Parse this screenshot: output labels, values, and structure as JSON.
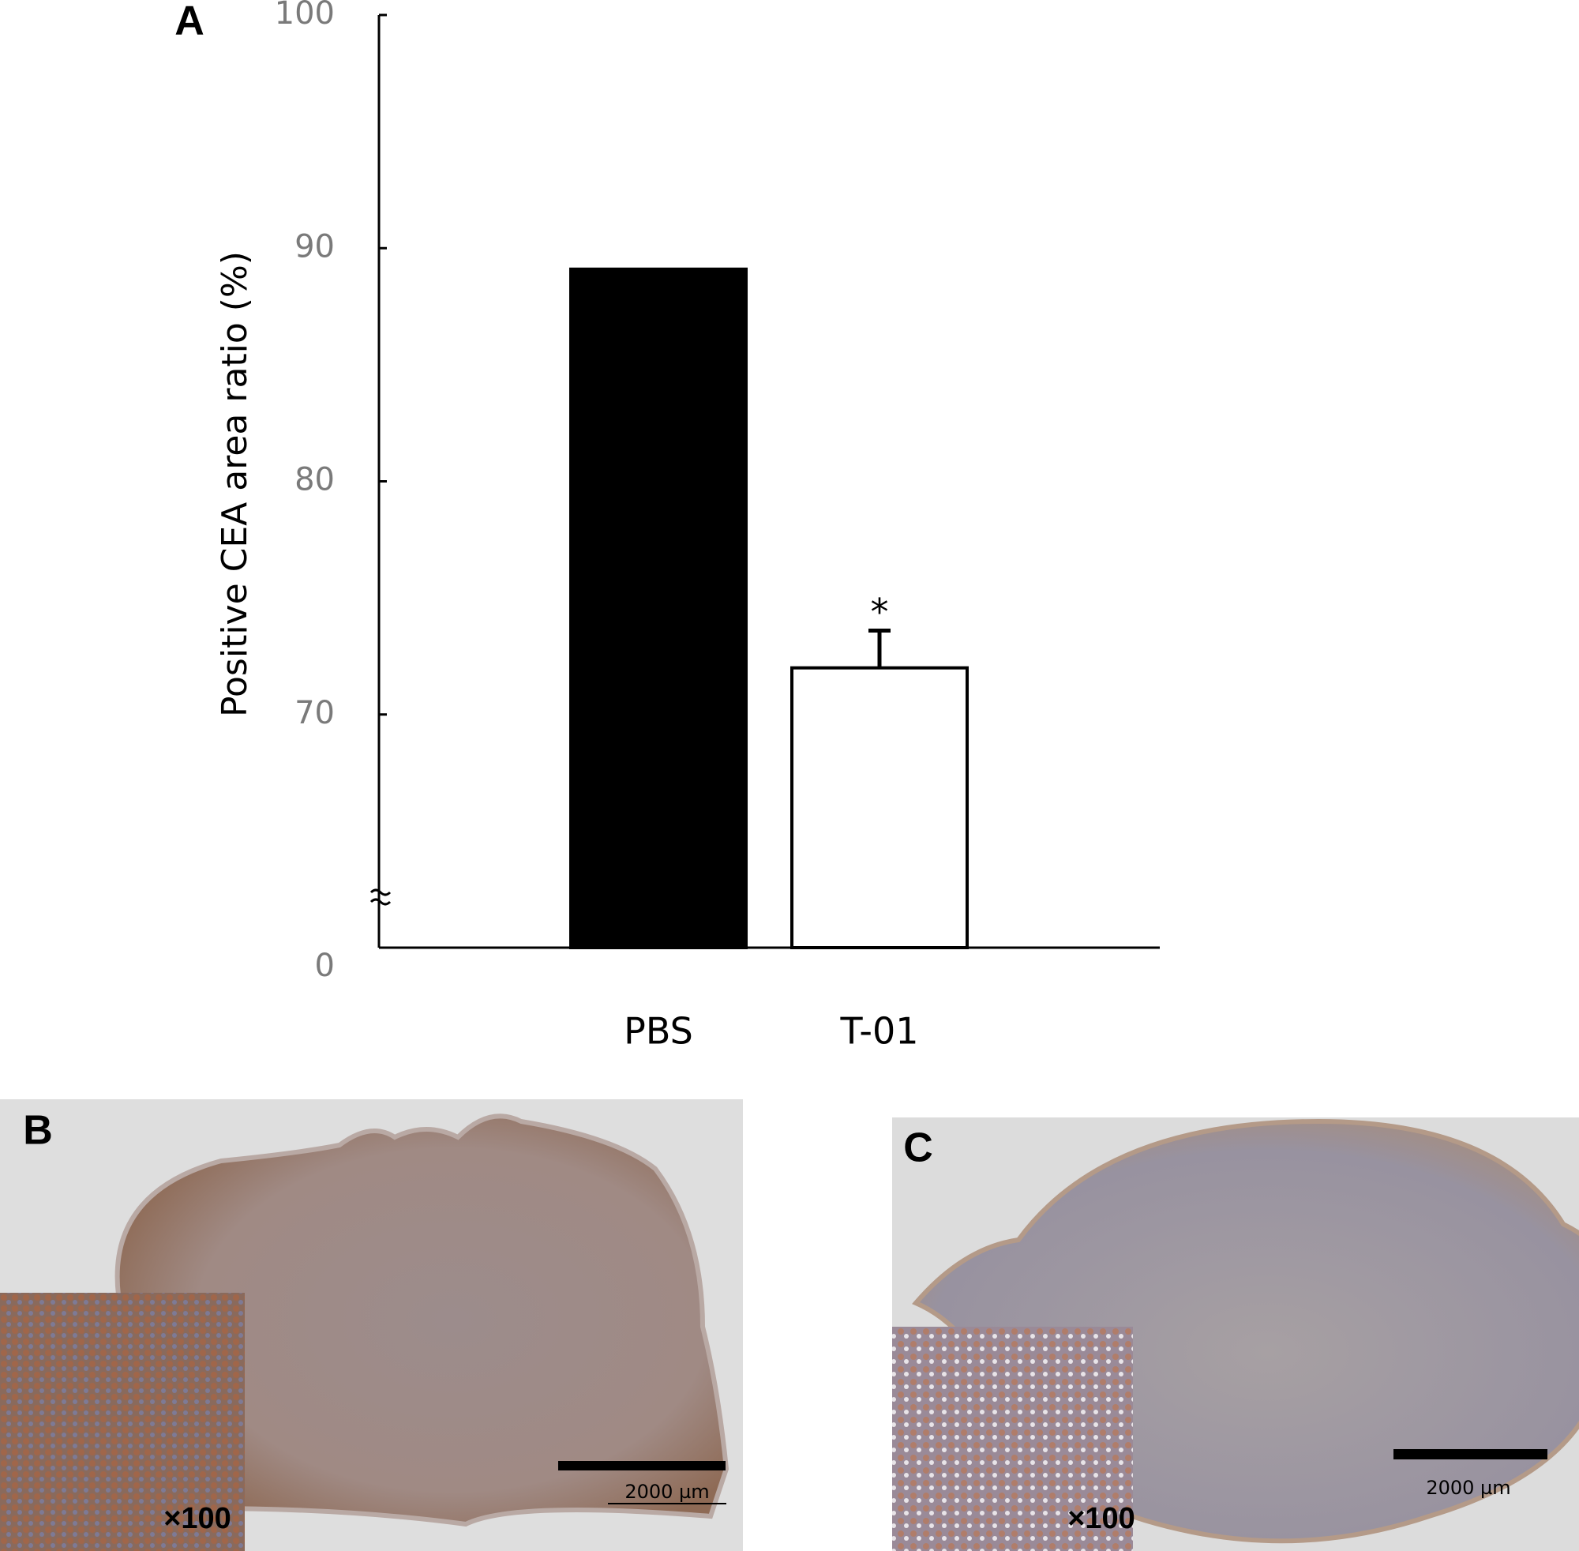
{
  "chart_data": {
    "type": "bar",
    "panel_label": "A",
    "ylabel": "Positive CEA area ratio (%)",
    "categories": [
      "PBS",
      "T-01"
    ],
    "values": [
      89.1,
      72.0
    ],
    "errors": [
      null,
      1.6
    ],
    "colors": [
      "#000000",
      "#ffffff"
    ],
    "significance": [
      null,
      "*"
    ],
    "ylim": [
      0,
      100
    ],
    "yticks": [
      0,
      70,
      80,
      90,
      100
    ],
    "y_break": [
      0,
      60
    ],
    "grid": false
  },
  "panels": [
    {
      "label": "B",
      "magnification": "×100",
      "scale_bar": "2000 µm"
    },
    {
      "label": "C",
      "magnification": "×100",
      "scale_bar": "2000 µm"
    }
  ]
}
